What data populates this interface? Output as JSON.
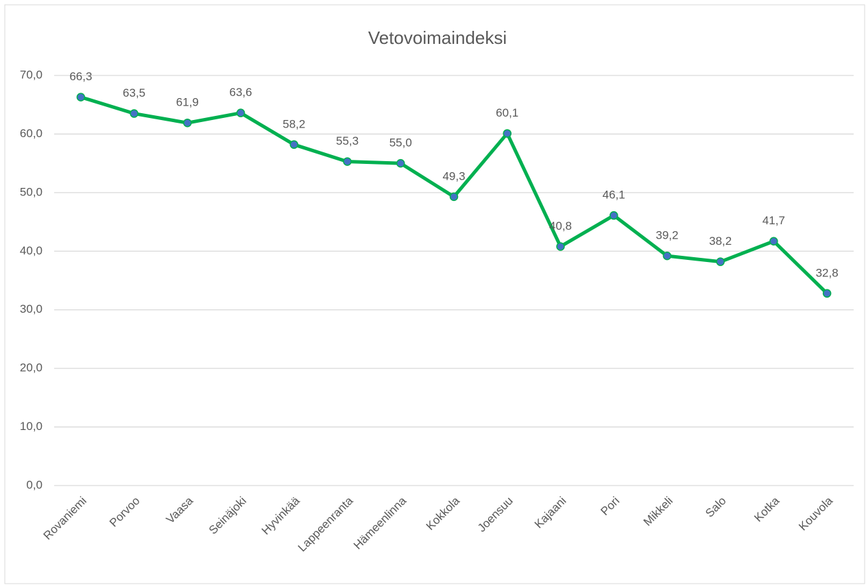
{
  "chart_data": {
    "type": "line",
    "title": "Vetovoimaindeksi",
    "categories": [
      "Rovaniemi",
      "Porvoo",
      "Vaasa",
      "Seinäjoki",
      "Hyvinkää",
      "Lappeenranta",
      "Hämeenlinna",
      "Kokkola",
      "Joensuu",
      "Kajaani",
      "Pori",
      "Mikkeli",
      "Salo",
      "Kotka",
      "Kouvola"
    ],
    "series": [
      {
        "name": "Vetovoimaindeksi",
        "color": "#00b050",
        "marker_color": "#4472c4",
        "values": [
          66.3,
          63.5,
          61.9,
          63.6,
          58.2,
          55.3,
          55.0,
          49.3,
          60.1,
          40.8,
          46.1,
          39.2,
          38.2,
          41.7,
          32.8
        ],
        "value_labels": [
          "66,3",
          "63,5",
          "61,9",
          "63,6",
          "58,2",
          "55,3",
          "55,0",
          "49,3",
          "60,1",
          "40,8",
          "46,1",
          "39,2",
          "38,2",
          "41,7",
          "32,8"
        ]
      }
    ],
    "ylim": [
      0,
      70
    ],
    "yticks": [
      {
        "value": 0,
        "label": "0,0"
      },
      {
        "value": 10,
        "label": "10,0"
      },
      {
        "value": 20,
        "label": "20,0"
      },
      {
        "value": 30,
        "label": "30,0"
      },
      {
        "value": 40,
        "label": "40,0"
      },
      {
        "value": 50,
        "label": "50,0"
      },
      {
        "value": 60,
        "label": "60,0"
      },
      {
        "value": 70,
        "label": "70,0"
      }
    ],
    "grid": true
  }
}
